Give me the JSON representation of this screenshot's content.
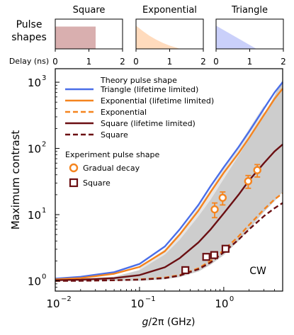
{
  "chart_data": [
    {
      "type": "area",
      "panel": "pulse-shapes",
      "row_label_line1": "Pulse",
      "row_label_line2": "shapes",
      "x_label": "Delay (ns)",
      "xlim": [
        0,
        2
      ],
      "ylim": [
        0,
        1
      ],
      "x_ticks": [
        0,
        1,
        2
      ],
      "x_tick_labels": [
        "0",
        "1",
        "2"
      ],
      "shapes": [
        {
          "title": "Square",
          "color": "#b96e6e",
          "x": [
            0,
            0,
            1.2,
            1.2
          ],
          "y": [
            0,
            0.75,
            0.75,
            0
          ]
        },
        {
          "title": "Exponential",
          "color": "#ffbe87",
          "x": [
            0,
            0,
            0.2,
            0.4,
            0.6,
            0.8,
            1.0,
            1.2,
            1.3
          ],
          "y": [
            0,
            0.78,
            0.6,
            0.44,
            0.31,
            0.2,
            0.11,
            0.04,
            0
          ]
        },
        {
          "title": "Triangle",
          "color": "#9eaaf5",
          "x": [
            0,
            0,
            1.2
          ],
          "y": [
            0,
            0.78,
            0
          ]
        }
      ]
    },
    {
      "type": "line",
      "panel": "contrast",
      "x_scale": "log",
      "y_scale": "log",
      "xlim": [
        0.01,
        5
      ],
      "ylim": [
        0.7,
        1600
      ],
      "xlabel": "g/2π (GHz)",
      "ylabel": "Maximum contrast",
      "x_ticks": [
        0.01,
        0.1,
        1
      ],
      "x_tick_labels": [
        "10",
        "10",
        "10"
      ],
      "x_tick_exps": [
        "−2",
        "−1",
        "0"
      ],
      "y_ticks": [
        1,
        10,
        100,
        1000
      ],
      "y_tick_labels": [
        "10",
        "10",
        "10",
        "10"
      ],
      "y_tick_exps": [
        "0",
        "1",
        "2",
        "3"
      ],
      "grid": false,
      "legend": {
        "placement": "top-left",
        "theory_title": "Theory pulse shape",
        "experiment_title": "Experiment pulse shape"
      },
      "region_label": "CW",
      "cw_region": {
        "color": "#cdcdcd",
        "x": [
          0.01,
          0.05,
          0.1,
          0.2,
          0.3,
          0.5,
          0.7,
          1.0,
          1.5,
          2.0,
          3.0,
          4.0,
          5.0
        ],
        "y_low": [
          1.0,
          1.0,
          1.0,
          1.06,
          1.14,
          1.38,
          1.75,
          2.45,
          4.0,
          6.0,
          11.0,
          16.0,
          22.0
        ],
        "y_high": [
          1.02,
          1.15,
          1.45,
          2.5,
          4.2,
          9.5,
          17.0,
          35.0,
          78.0,
          140.0,
          330.0,
          620.0,
          1100.0
        ]
      },
      "cw_highlight": {
        "color": "#e6e6e6",
        "x": [
          0.1,
          0.2,
          0.3,
          0.5,
          0.7,
          1.0,
          1.5,
          2.0,
          3.0
        ],
        "y_low": [
          1.45,
          2.5,
          4.2,
          9.5,
          17.0,
          35.0,
          78.0,
          140.0,
          330.0
        ],
        "y_high": [
          1.6,
          3.0,
          5.4,
          13.0,
          24.0,
          50.0,
          110.0,
          200.0,
          450.0
        ]
      },
      "series": [
        {
          "name": "Triangle (lifetime limited)",
          "color": "#4a6ee8",
          "dash": "solid",
          "x": [
            0.01,
            0.02,
            0.05,
            0.1,
            0.2,
            0.3,
            0.5,
            0.7,
            1.0,
            1.5,
            2.0,
            3.0,
            4.0,
            5.0
          ],
          "y": [
            1.08,
            1.15,
            1.35,
            1.8,
            3.3,
            6.0,
            14.0,
            27.0,
            52.0,
            105.0,
            180.0,
            400.0,
            700.0,
            1000.0
          ]
        },
        {
          "name": "Exponential (lifetime limited)",
          "color": "#f5841e",
          "dash": "solid",
          "x": [
            0.01,
            0.02,
            0.05,
            0.1,
            0.2,
            0.3,
            0.5,
            0.7,
            1.0,
            1.5,
            2.0,
            3.0,
            4.0,
            5.0
          ],
          "y": [
            1.05,
            1.1,
            1.28,
            1.62,
            2.8,
            5.0,
            11.5,
            22.0,
            43.0,
            85.0,
            145.0,
            320.0,
            560.0,
            800.0
          ]
        },
        {
          "name": "Exponential",
          "color": "#f5841e",
          "dash": "dashed",
          "x": [
            0.01,
            0.02,
            0.05,
            0.1,
            0.2,
            0.3,
            0.5,
            0.7,
            1.0,
            1.5,
            2.0,
            3.0,
            4.0,
            5.0
          ],
          "y": [
            1.0,
            1.01,
            1.02,
            1.05,
            1.12,
            1.22,
            1.55,
            2.0,
            2.9,
            4.7,
            7.0,
            12.0,
            17.0,
            21.0
          ]
        },
        {
          "name": "Square (lifetime limited)",
          "color": "#6b0f12",
          "dash": "solid",
          "x": [
            0.01,
            0.02,
            0.05,
            0.1,
            0.2,
            0.3,
            0.5,
            0.7,
            1.0,
            1.5,
            2.0,
            3.0,
            4.0,
            5.0
          ],
          "y": [
            1.02,
            1.04,
            1.1,
            1.22,
            1.6,
            2.2,
            3.8,
            6.0,
            10.5,
            20.0,
            33.0,
            60.0,
            90.0,
            115.0
          ]
        },
        {
          "name": "Square",
          "color": "#6b0f12",
          "dash": "dashed",
          "x": [
            0.01,
            0.02,
            0.05,
            0.1,
            0.2,
            0.3,
            0.5,
            0.7,
            1.0,
            1.5,
            2.0,
            3.0,
            4.0,
            5.0
          ],
          "y": [
            1.0,
            1.0,
            1.02,
            1.04,
            1.1,
            1.2,
            1.5,
            1.9,
            2.7,
            4.2,
            6.0,
            9.5,
            12.5,
            15.0
          ]
        }
      ],
      "experiment": [
        {
          "name": "Gradual decay",
          "marker": "circle",
          "color": "#f5841e",
          "points": [
            {
              "x": 0.78,
              "y": 12.0,
              "err": 3.0
            },
            {
              "x": 0.97,
              "y": 18.0,
              "err": 4.0
            },
            {
              "x": 1.95,
              "y": 32.0,
              "err": 7.0
            },
            {
              "x": 2.5,
              "y": 47.0,
              "err": 10.0
            }
          ]
        },
        {
          "name": "Square",
          "marker": "square",
          "color": "#6b0f12",
          "points": [
            {
              "x": 0.35,
              "y": 1.45
            },
            {
              "x": 0.62,
              "y": 2.3
            },
            {
              "x": 0.77,
              "y": 2.45
            },
            {
              "x": 1.05,
              "y": 3.05
            }
          ]
        }
      ]
    }
  ]
}
